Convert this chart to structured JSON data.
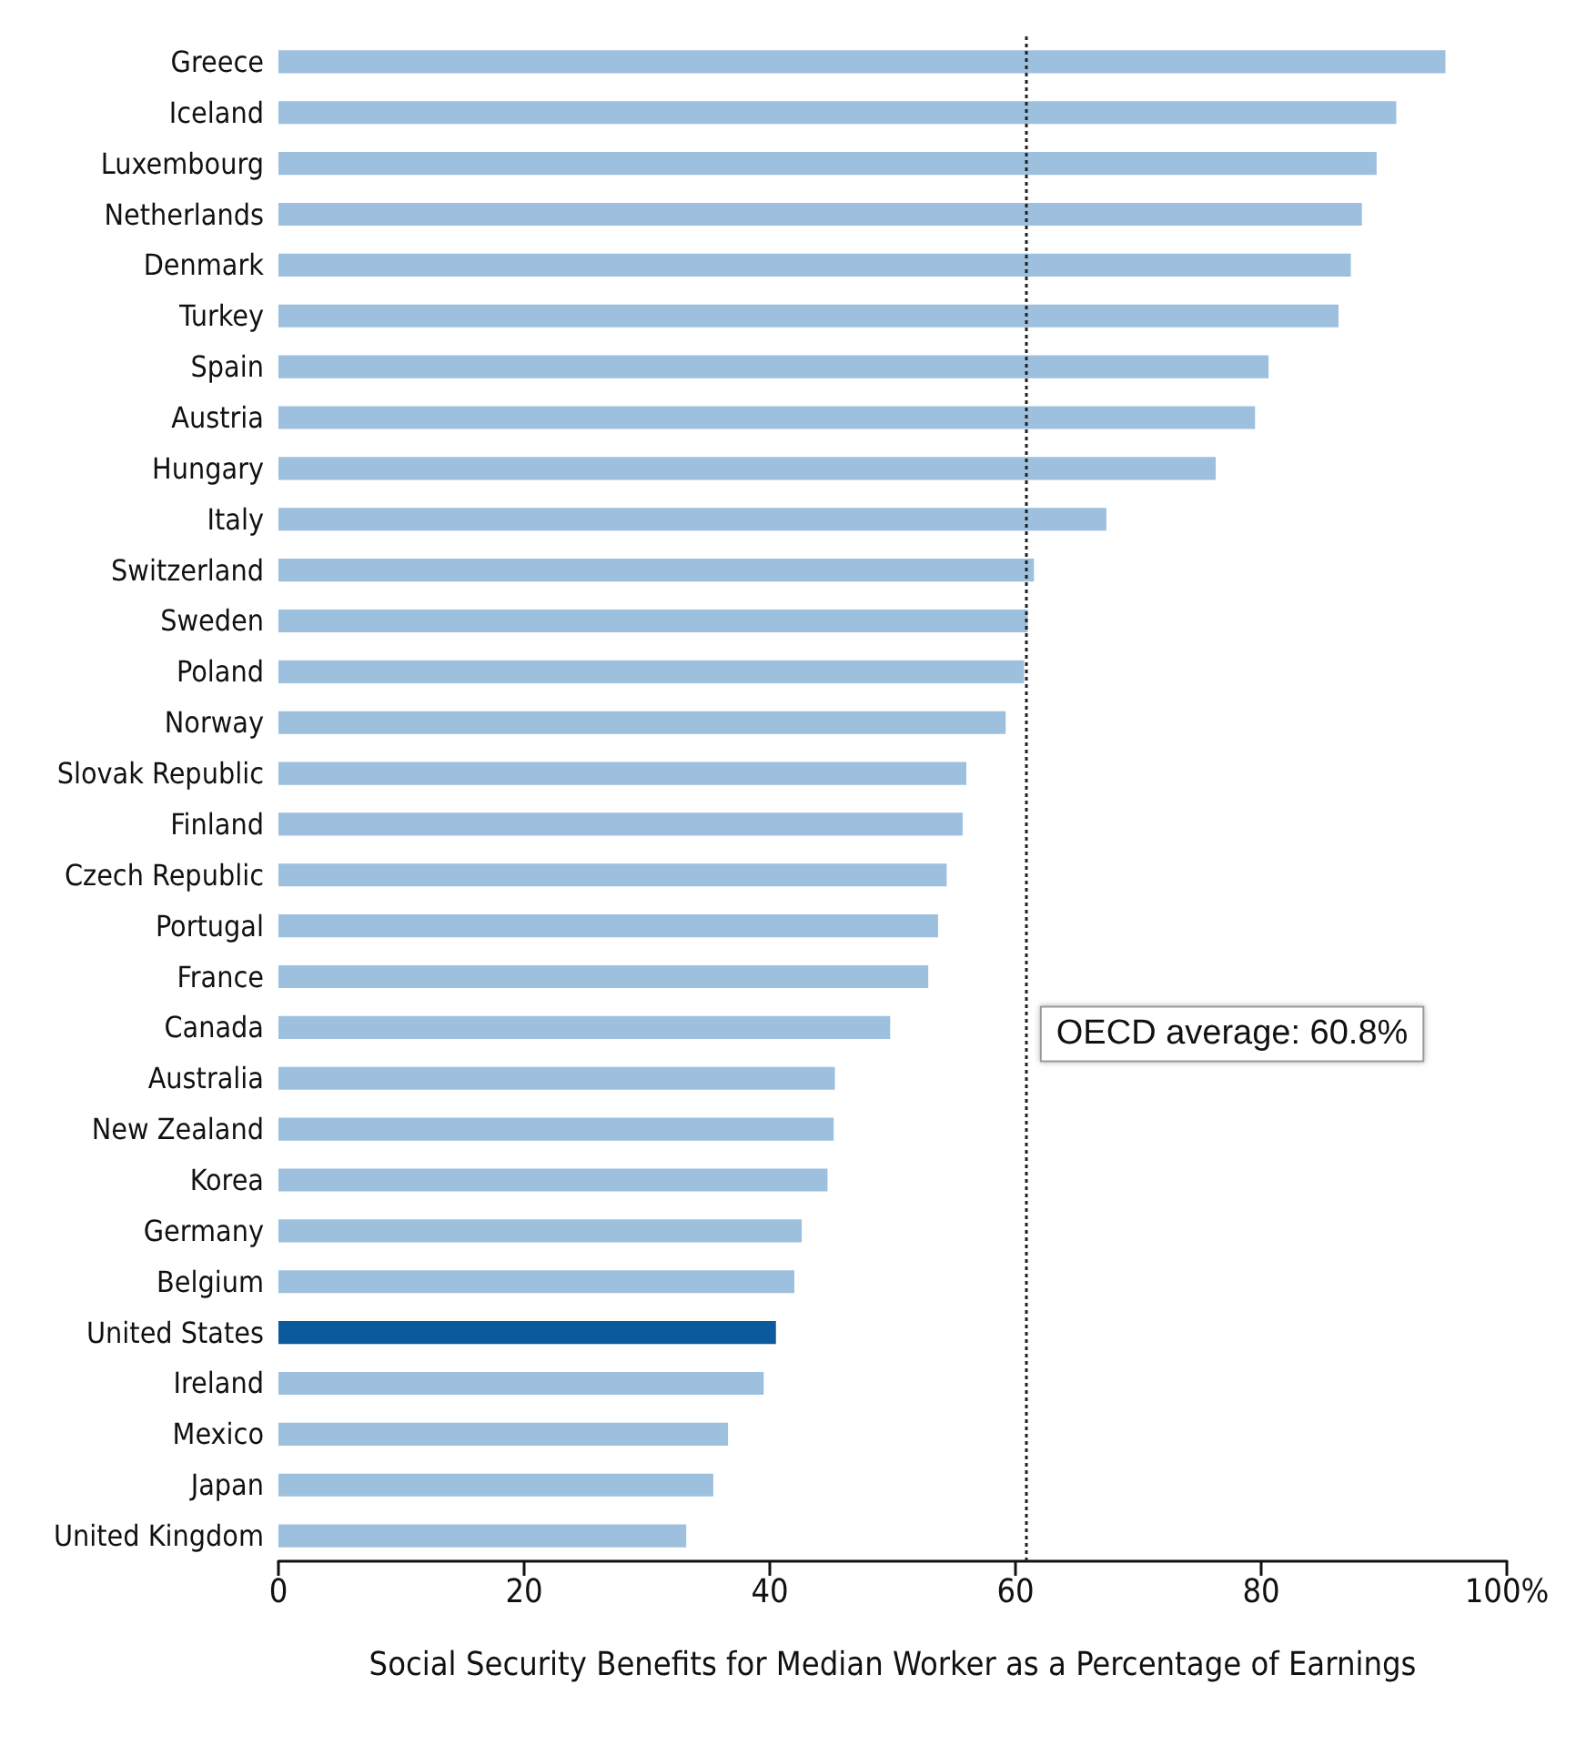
{
  "chart_data": {
    "type": "bar",
    "orientation": "horizontal",
    "xlabel": "Social Security Benefits for Median Worker as a Percentage of Earnings",
    "categories": [
      "Greece",
      "Iceland",
      "Luxembourg",
      "Netherlands",
      "Denmark",
      "Turkey",
      "Spain",
      "Austria",
      "Hungary",
      "Italy",
      "Switzerland",
      "Sweden",
      "Poland",
      "Norway",
      "Slovak Republic",
      "Finland",
      "Czech Republic",
      "Portugal",
      "France",
      "Canada",
      "Australia",
      "New Zealand",
      "Korea",
      "Germany",
      "Belgium",
      "United States",
      "Ireland",
      "Mexico",
      "Japan",
      "United Kingdom"
    ],
    "values": [
      95.0,
      91.0,
      89.4,
      88.2,
      87.3,
      86.3,
      80.6,
      79.5,
      76.3,
      67.4,
      61.5,
      61.0,
      60.7,
      59.2,
      56.0,
      55.7,
      54.4,
      53.7,
      52.9,
      49.8,
      45.3,
      45.2,
      44.7,
      42.6,
      42.0,
      40.5,
      39.5,
      36.6,
      35.4,
      33.2
    ],
    "colors": [
      "#9dc0de",
      "#9dc0de",
      "#9dc0de",
      "#9dc0de",
      "#9dc0de",
      "#9dc0de",
      "#9dc0de",
      "#9dc0de",
      "#9dc0de",
      "#9dc0de",
      "#9dc0de",
      "#9dc0de",
      "#9dc0de",
      "#9dc0de",
      "#9dc0de",
      "#9dc0de",
      "#9dc0de",
      "#9dc0de",
      "#9dc0de",
      "#9dc0de",
      "#9dc0de",
      "#9dc0de",
      "#9dc0de",
      "#9dc0de",
      "#9dc0de",
      "#0a5a9c",
      "#9dc0de",
      "#9dc0de",
      "#9dc0de",
      "#9dc0de"
    ],
    "xlim": [
      0,
      100
    ],
    "xticks": [
      0,
      20,
      40,
      60,
      80,
      {
        "value": 100,
        "label": "100%"
      }
    ],
    "ref_lines": [
      {
        "axis": "x",
        "value": 60.8,
        "label": "OECD average: 60.8%",
        "line_style": "dotted",
        "color": "#222222"
      }
    ],
    "grid": false
  }
}
